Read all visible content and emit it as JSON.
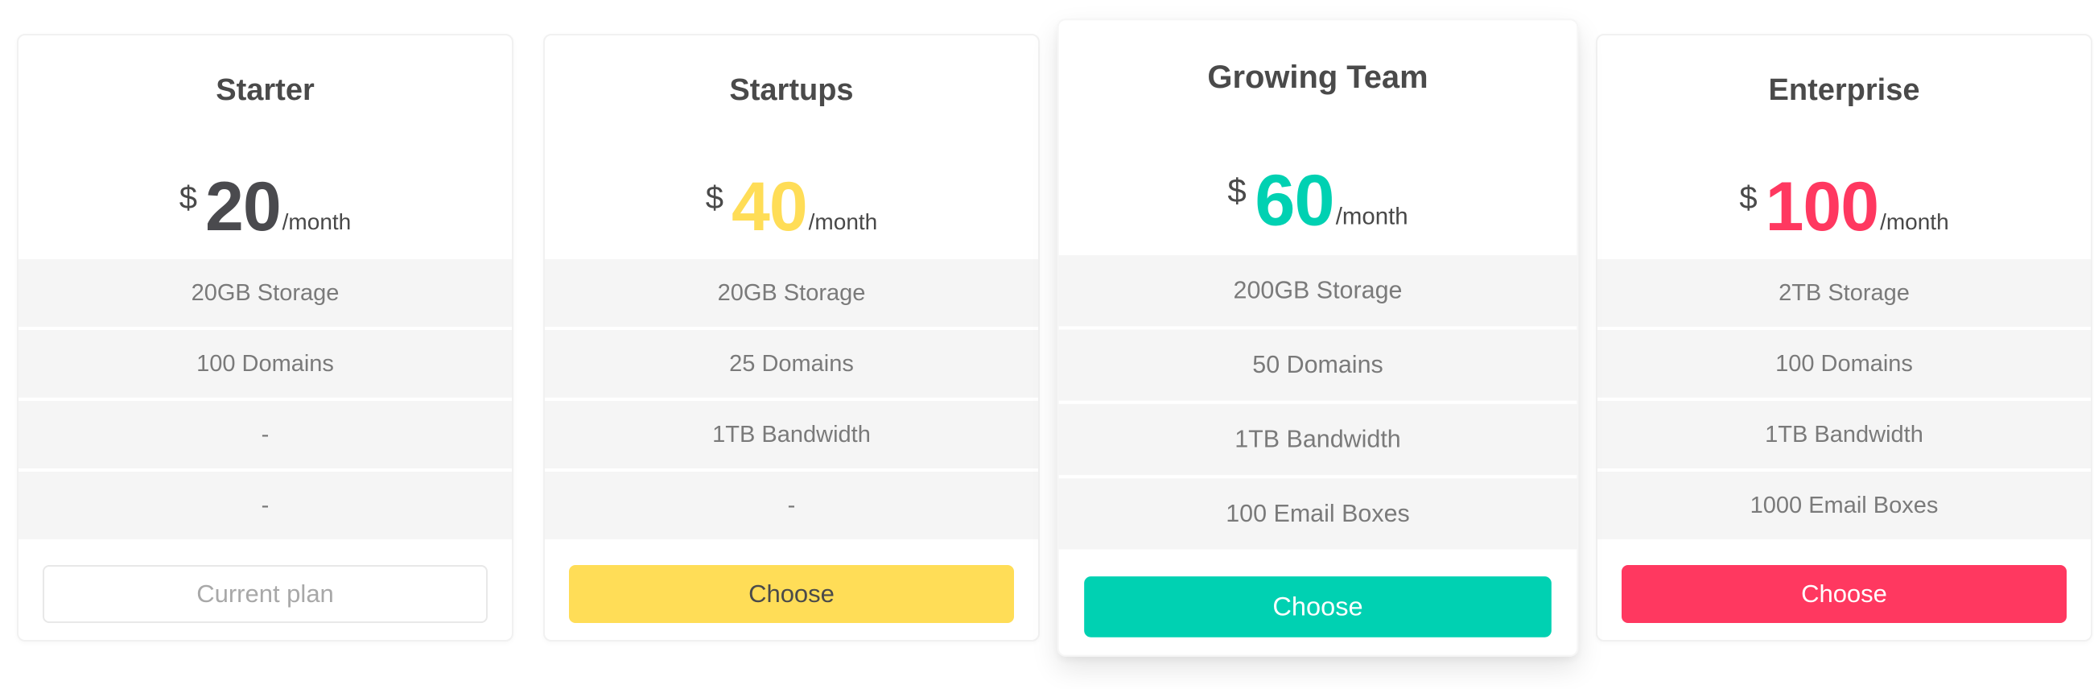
{
  "page": {
    "background": "#ffffff"
  },
  "pricing_table": {
    "plans": [
      {
        "name": "Starter",
        "currency": "$",
        "amount": "20",
        "period": "/month",
        "accent": "#4a4a4e",
        "features": [
          "20GB Storage",
          "100 Domains",
          "-",
          "-"
        ],
        "button": {
          "label": "Current plan",
          "bg": "#ffffff",
          "text_color": "#a8a8a8",
          "border_color": "#e8e8e8"
        },
        "featured": false
      },
      {
        "name": "Startups",
        "currency": "$",
        "amount": "40",
        "period": "/month",
        "accent": "#ffdd57",
        "features": [
          "20GB Storage",
          "25 Domains",
          "1TB Bandwidth",
          "-"
        ],
        "button": {
          "label": "Choose",
          "bg": "#ffdd57",
          "text_color": "#4a4a4a",
          "border_color": "#ffdd57"
        },
        "featured": false
      },
      {
        "name": "Growing Team",
        "currency": "$",
        "amount": "60",
        "period": "/month",
        "accent": "#00d1b2",
        "features": [
          "200GB Storage",
          "50 Domains",
          "1TB Bandwidth",
          "100 Email Boxes"
        ],
        "button": {
          "label": "Choose",
          "bg": "#00d1b2",
          "text_color": "#ffffff",
          "border_color": "#00d1b2"
        },
        "featured": true
      },
      {
        "name": "Enterprise",
        "currency": "$",
        "amount": "100",
        "period": "/month",
        "accent": "#ff3860",
        "features": [
          "2TB Storage",
          "100 Domains",
          "1TB Bandwidth",
          "1000 Email Boxes"
        ],
        "button": {
          "label": "Choose",
          "bg": "#ff3860",
          "text_color": "#ffffff",
          "border_color": "#ff3860"
        },
        "featured": false
      }
    ]
  }
}
